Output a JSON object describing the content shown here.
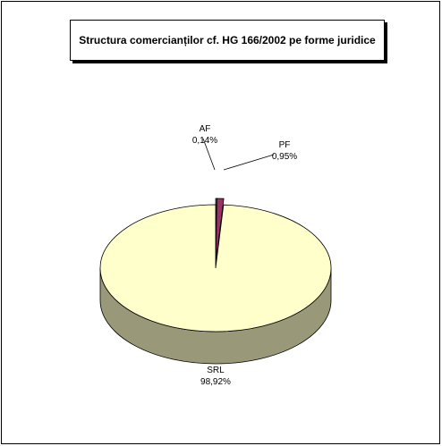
{
  "chart_data": {
    "type": "pie",
    "title": "Structura comercianților cf. HG 166/2002 pe forme juridice",
    "categories": [
      "AF",
      "PF",
      "SRL"
    ],
    "values": [
      0.14,
      0.95,
      98.92
    ],
    "value_labels": [
      "0,14%",
      "0,95%",
      "98,92%"
    ],
    "colors": [
      "#9999ff",
      "#993366",
      "#ffffcc"
    ],
    "three_d": true
  }
}
